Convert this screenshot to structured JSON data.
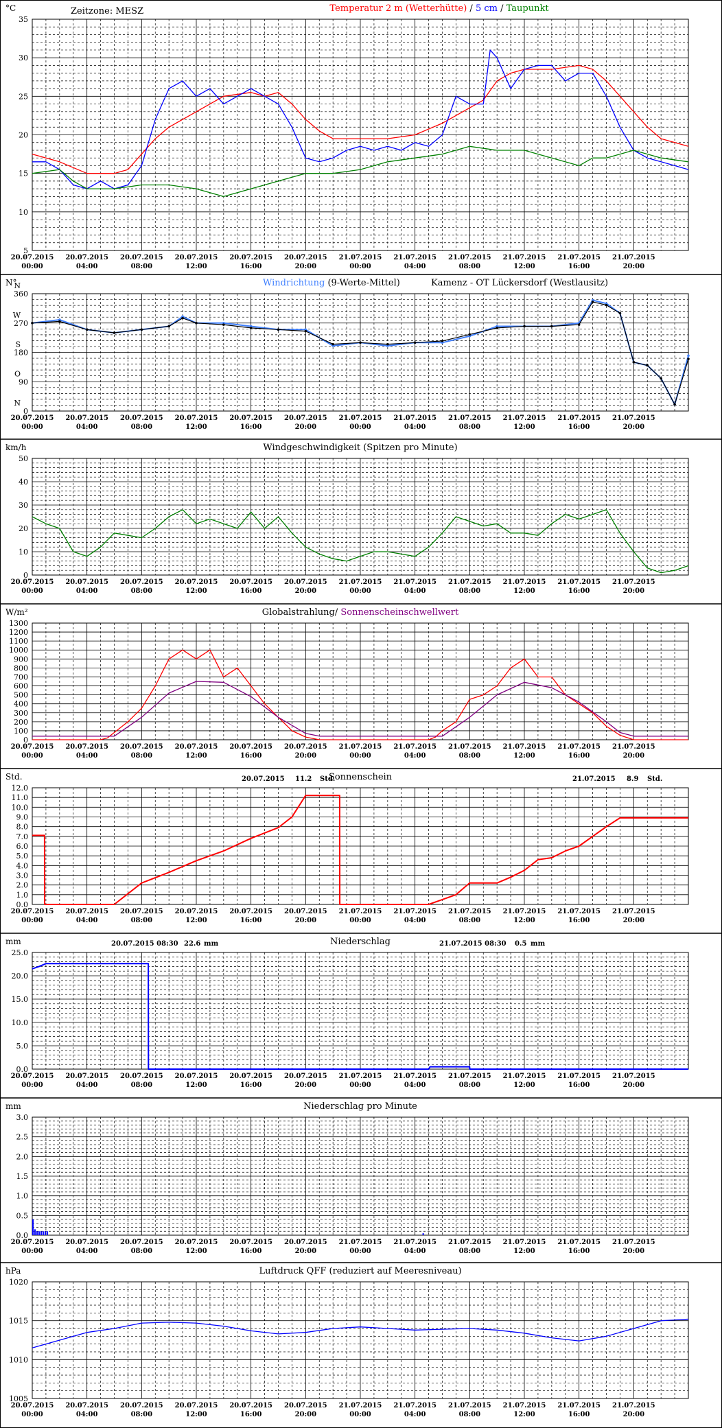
{
  "timezone_label": "Zeitzone: MESZ",
  "x_ticks": [
    [
      "20.07.2015",
      "00:00"
    ],
    [
      "20.07.2015",
      "04:00"
    ],
    [
      "20.07.2015",
      "08:00"
    ],
    [
      "20.07.2015",
      "12:00"
    ],
    [
      "20.07.2015",
      "16:00"
    ],
    [
      "20.07.2015",
      "20:00"
    ],
    [
      "21.07.2015",
      "00:00"
    ],
    [
      "21.07.2015",
      "04:00"
    ],
    [
      "21.07.2015",
      "08:00"
    ],
    [
      "21.07.2015",
      "12:00"
    ],
    [
      "21.07.2015",
      "16:00"
    ],
    [
      "21.07.2015",
      "20:00"
    ]
  ],
  "panels": [
    {
      "id": "temperature",
      "unit": "°C",
      "title_parts": [
        {
          "text": "Temperatur 2 m (Wetterhütte)",
          "color": "#ff0000"
        },
        {
          "text": "  /  ",
          "color": "#000000"
        },
        {
          "text": "5 cm",
          "color": "#0000ff"
        },
        {
          "text": " / ",
          "color": "#000000"
        },
        {
          "text": "Taupunkt",
          "color": "#008000"
        }
      ],
      "y_ticks": [
        "5",
        "10",
        "15",
        "20",
        "25",
        "30",
        "35"
      ]
    },
    {
      "id": "wind_direction",
      "unit": "N°",
      "title_parts": [
        {
          "text": "Windrichtung",
          "color": "#4080ff"
        },
        {
          "text": " (9-Werte-Mittel)",
          "color": "#000000"
        }
      ],
      "station": "Kamenz - OT Lückersdorf (Westlausitz)",
      "y_ticks": [
        "0",
        "90",
        "180",
        "270",
        "360"
      ],
      "compass": [
        "N",
        "O",
        "S",
        "W",
        "N"
      ]
    },
    {
      "id": "wind_speed",
      "unit": "km/h",
      "title_parts": [
        {
          "text": "Windgeschwindigkeit (Spitzen pro Minute)",
          "color": "#000000"
        }
      ],
      "y_ticks": [
        "0",
        "10",
        "20",
        "30",
        "40",
        "50"
      ]
    },
    {
      "id": "radiation",
      "unit": "W/m²",
      "title_parts": [
        {
          "text": "Globalstrahlung/ ",
          "color": "#000000"
        },
        {
          "text": "Sonnenscheinschwellwert",
          "color": "#800080"
        }
      ],
      "y_ticks": [
        "0",
        "100",
        "200",
        "300",
        "400",
        "500",
        "600",
        "700",
        "800",
        "900",
        "1000",
        "1100",
        "1200",
        "1300"
      ]
    },
    {
      "id": "sunshine",
      "unit": "Std.",
      "title_parts": [
        {
          "text": "Sonnenschein",
          "color": "#000000"
        }
      ],
      "annotations": [
        "20.07.2015",
        "11.2",
        "Std.",
        "21.07.2015",
        "8.9",
        "Std."
      ],
      "y_ticks": [
        "0.0",
        "1.0",
        "2.0",
        "3.0",
        "4.0",
        "5.0",
        "6.0",
        "7.0",
        "8.0",
        "9.0",
        "10.0",
        "11.0",
        "12.0"
      ]
    },
    {
      "id": "precipitation",
      "unit": "mm",
      "title_parts": [
        {
          "text": "Niederschlag",
          "color": "#000000"
        }
      ],
      "annotations": [
        "20.07.2015 08:30",
        "22.6",
        "mm",
        "21.07.2015 08:30",
        "0.5",
        "mm"
      ],
      "y_ticks": [
        "0.0",
        "5.0",
        "10.0",
        "15.0",
        "20.0",
        "25.0"
      ]
    },
    {
      "id": "precip_minute",
      "unit": "mm",
      "title_parts": [
        {
          "text": "Niederschlag pro Minute",
          "color": "#000000"
        }
      ],
      "y_ticks": [
        "0.0",
        "0.5",
        "1.0",
        "1.5",
        "2.0",
        "2.5",
        "3.0"
      ]
    },
    {
      "id": "pressure",
      "unit": "hPa",
      "title_parts": [
        {
          "text": "Luftdruck QFF (reduziert auf Meeresniveau)",
          "color": "#000000"
        }
      ],
      "y_ticks": [
        "1005",
        "1010",
        "1015",
        "1020"
      ]
    }
  ],
  "chart_data": [
    {
      "type": "line",
      "x_range_hours": [
        0,
        48
      ],
      "ylim": [
        5,
        35
      ],
      "series": [
        {
          "name": "Temperatur 2 m (Wetterhütte)",
          "color": "#ff0000",
          "x": [
            0,
            2,
            4,
            6,
            7,
            8,
            9,
            10,
            12,
            14,
            16,
            17,
            18,
            19,
            20,
            21,
            22,
            24,
            26,
            28,
            30,
            32,
            33,
            34,
            35,
            36,
            38,
            40,
            41,
            42,
            43,
            44,
            45,
            46,
            48
          ],
          "y": [
            17.5,
            16.5,
            15,
            15,
            15.5,
            17.5,
            19.5,
            21,
            23,
            25,
            25.5,
            25,
            25.5,
            24,
            22,
            20.5,
            19.5,
            19.5,
            19.5,
            20,
            21.5,
            23.5,
            24.5,
            27,
            28,
            28.5,
            28.5,
            29,
            28.5,
            27,
            25,
            23,
            21,
            19.5,
            18.5
          ]
        },
        {
          "name": "5 cm",
          "color": "#0000ff",
          "x": [
            0,
            1,
            2,
            3,
            4,
            5,
            6,
            7,
            8,
            8.5,
            9,
            10,
            11,
            12,
            13,
            14,
            15,
            16,
            17,
            18,
            19,
            20,
            21,
            22,
            23,
            24,
            25,
            26,
            27,
            28,
            29,
            30,
            31,
            32,
            33,
            33.5,
            34,
            35,
            36,
            37,
            38,
            39,
            40,
            41,
            42,
            43,
            44,
            45,
            46,
            47,
            48
          ],
          "y": [
            16.5,
            16.5,
            15.5,
            13.5,
            13,
            14,
            13,
            13.5,
            16,
            19,
            22,
            26,
            27,
            25,
            26,
            24,
            25,
            26,
            25,
            24,
            21,
            17,
            16.5,
            17,
            18,
            18.5,
            18,
            18.5,
            18,
            19,
            18.5,
            20,
            25,
            24,
            24,
            31,
            30,
            26,
            28.5,
            29,
            29,
            27,
            28,
            28,
            25,
            21,
            18,
            17,
            16.5,
            16,
            15.5
          ]
        },
        {
          "name": "Taupunkt",
          "color": "#008000",
          "x": [
            0,
            2,
            3,
            4,
            6,
            8,
            10,
            12,
            13,
            14,
            16,
            17,
            18,
            20,
            22,
            24,
            26,
            28,
            30,
            32,
            34,
            36,
            38,
            40,
            41,
            42,
            43,
            44,
            45,
            46,
            48
          ],
          "y": [
            15,
            15.5,
            14,
            13,
            13,
            13.5,
            13.5,
            13,
            12.5,
            12,
            13,
            13.5,
            14,
            15,
            15,
            15.5,
            16.5,
            17,
            17.5,
            18.5,
            18,
            18,
            17,
            16,
            17,
            17,
            17.5,
            18,
            17.5,
            17,
            16.5
          ]
        }
      ]
    },
    {
      "type": "scatter",
      "x_range_hours": [
        0,
        48
      ],
      "ylim": [
        0,
        360
      ],
      "series": [
        {
          "name": "Windrichtung",
          "color": "#4080ff",
          "x": [
            0,
            2,
            4,
            6,
            8,
            10,
            11,
            12,
            14,
            16,
            18,
            20,
            22,
            24,
            26,
            28,
            30,
            32,
            34,
            36,
            38,
            40,
            41,
            42,
            43,
            44,
            45,
            46,
            47,
            48
          ],
          "y": [
            270,
            280,
            250,
            240,
            250,
            260,
            290,
            270,
            270,
            260,
            250,
            250,
            200,
            210,
            200,
            210,
            210,
            230,
            260,
            260,
            260,
            270,
            340,
            330,
            300,
            150,
            140,
            100,
            20,
            170
          ]
        },
        {
          "name": "9-Werte-Mittel",
          "color": "#000000",
          "x": [
            0,
            2,
            4,
            6,
            8,
            10,
            11,
            12,
            14,
            16,
            18,
            20,
            22,
            24,
            26,
            28,
            30,
            32,
            34,
            36,
            38,
            40,
            41,
            42,
            43,
            44,
            45,
            46,
            47,
            48
          ],
          "y": [
            270,
            275,
            250,
            240,
            250,
            260,
            285,
            270,
            265,
            255,
            250,
            245,
            205,
            210,
            205,
            210,
            215,
            235,
            255,
            260,
            260,
            265,
            335,
            325,
            300,
            150,
            140,
            100,
            20,
            160
          ]
        }
      ]
    },
    {
      "type": "line",
      "x_range_hours": [
        0,
        48
      ],
      "ylim": [
        0,
        50
      ],
      "series": [
        {
          "name": "Windgeschwindigkeit",
          "color": "#008000",
          "x": [
            0,
            1,
            2,
            3,
            4,
            5,
            6,
            7,
            8,
            9,
            10,
            11,
            12,
            13,
            14,
            15,
            16,
            17,
            18,
            19,
            20,
            21,
            22,
            23,
            24,
            25,
            26,
            27,
            28,
            29,
            30,
            31,
            32,
            33,
            34,
            35,
            36,
            37,
            38,
            39,
            40,
            41,
            42,
            43,
            44,
            45,
            46,
            47,
            48
          ],
          "y": [
            25,
            22,
            20,
            10,
            8,
            12,
            18,
            17,
            16,
            20,
            25,
            28,
            22,
            24,
            22,
            20,
            27,
            20,
            25,
            18,
            12,
            9,
            7,
            6,
            8,
            10,
            10,
            9,
            8,
            12,
            18,
            25,
            23,
            21,
            22,
            18,
            18,
            17,
            22,
            26,
            24,
            26,
            28,
            18,
            10,
            3,
            1,
            2,
            4
          ]
        }
      ]
    },
    {
      "type": "line",
      "x_range_hours": [
        0,
        48
      ],
      "ylim": [
        0,
        1300
      ],
      "series": [
        {
          "name": "Globalstrahlung",
          "color": "#ff0000",
          "x": [
            0,
            5,
            5.5,
            6,
            7,
            8,
            9,
            10,
            11,
            12,
            13,
            14,
            15,
            16,
            17,
            18,
            19,
            20,
            21,
            24,
            29,
            29.5,
            30,
            31,
            32,
            33,
            34,
            35,
            36,
            37,
            38,
            39,
            40,
            41,
            42,
            43,
            44,
            48
          ],
          "y": [
            0,
            0,
            20,
            80,
            200,
            350,
            600,
            900,
            1000,
            900,
            1000,
            700,
            800,
            600,
            400,
            250,
            100,
            30,
            0,
            0,
            0,
            30,
            100,
            200,
            450,
            500,
            600,
            800,
            900,
            700,
            700,
            500,
            400,
            300,
            150,
            50,
            0,
            0
          ]
        },
        {
          "name": "Sonnenscheinschwellwert",
          "color": "#800080",
          "x": [
            0,
            5.5,
            6,
            8,
            10,
            12,
            14,
            16,
            18,
            20,
            21,
            29,
            29.5,
            30,
            32,
            34,
            36,
            38,
            40,
            42,
            43,
            44,
            48
          ],
          "y": [
            40,
            40,
            40,
            250,
            520,
            650,
            640,
            480,
            250,
            70,
            40,
            40,
            40,
            40,
            250,
            500,
            640,
            580,
            420,
            200,
            80,
            40,
            40
          ]
        }
      ]
    },
    {
      "type": "line",
      "x_range_hours": [
        0,
        48
      ],
      "ylim": [
        0,
        12
      ],
      "series": [
        {
          "name": "Sonnenschein",
          "color": "#ff0000",
          "x": [
            0,
            0.9,
            0.91,
            6,
            8,
            10,
            12,
            14,
            16,
            18,
            19,
            20,
            22,
            22.49,
            22.5,
            29,
            30,
            31,
            32,
            33,
            34,
            35,
            36,
            37,
            38,
            39,
            40,
            41,
            42,
            43,
            44,
            48
          ],
          "y": [
            7.1,
            7.1,
            0,
            0,
            2.2,
            3.3,
            4.5,
            5.5,
            6.8,
            7.9,
            9,
            11.2,
            11.2,
            11.2,
            0,
            0,
            0.5,
            1,
            2.2,
            2.2,
            2.2,
            2.8,
            3.5,
            4.6,
            4.8,
            5.5,
            6,
            7,
            8,
            8.9,
            8.9,
            8.9
          ]
        }
      ]
    },
    {
      "type": "line",
      "x_range_hours": [
        0,
        48
      ],
      "ylim": [
        0,
        25
      ],
      "series": [
        {
          "name": "Niederschlag",
          "color": "#0000ff",
          "x": [
            0,
            0.5,
            1,
            8.49,
            8.5,
            29,
            29.1,
            32,
            32.01,
            48
          ],
          "y": [
            21.5,
            22,
            22.6,
            22.6,
            0,
            0,
            0.5,
            0.5,
            0,
            0
          ]
        }
      ]
    },
    {
      "type": "bar",
      "x_range_hours": [
        0,
        48
      ],
      "ylim": [
        0,
        3
      ],
      "series": [
        {
          "name": "Niederschlag pro Minute",
          "color": "#0000ff",
          "x": [
            0.05,
            0.2,
            0.35,
            0.5,
            0.65,
            0.8,
            0.95,
            1.1,
            28.6
          ],
          "y": [
            0.4,
            0.15,
            0.1,
            0.1,
            0.1,
            0.1,
            0.1,
            0.1,
            0.05
          ]
        }
      ]
    },
    {
      "type": "line",
      "x_range_hours": [
        0,
        48
      ],
      "ylim": [
        1005,
        1020
      ],
      "series": [
        {
          "name": "Luftdruck QFF",
          "color": "#0000ff",
          "x": [
            0,
            2,
            4,
            6,
            8,
            10,
            12,
            14,
            16,
            18,
            20,
            22,
            24,
            26,
            28,
            30,
            32,
            34,
            36,
            38,
            40,
            42,
            44,
            46,
            48
          ],
          "y": [
            1011.5,
            1012.5,
            1013.5,
            1014,
            1014.7,
            1014.8,
            1014.7,
            1014.3,
            1013.7,
            1013.3,
            1013.5,
            1014,
            1014.2,
            1014,
            1013.8,
            1013.9,
            1014,
            1013.8,
            1013.4,
            1012.8,
            1012.4,
            1013,
            1014,
            1015,
            1015.2
          ]
        }
      ]
    }
  ]
}
